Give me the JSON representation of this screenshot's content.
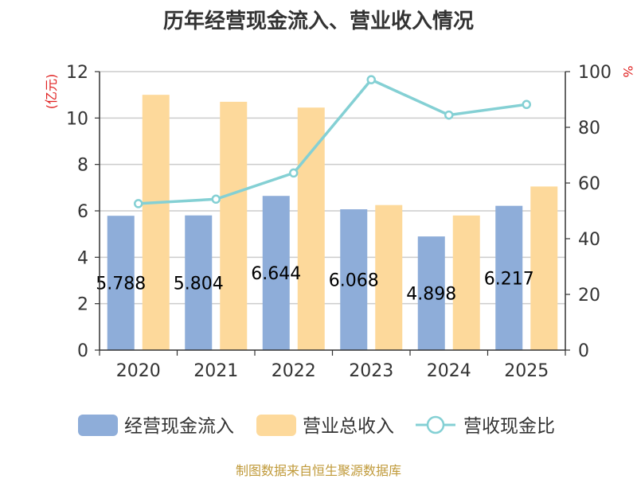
{
  "chart_data": {
    "type": "bar",
    "title": "历年经营现金流入、营业收入情况",
    "categories": [
      "2020",
      "2021",
      "2022",
      "2023",
      "2024",
      "2025"
    ],
    "y_left": {
      "unit_label": "(亿元)",
      "min": 0,
      "max": 12,
      "ticks": [
        "0",
        "2",
        "4",
        "6",
        "8",
        "10",
        "12"
      ]
    },
    "y_right": {
      "unit_label": "%",
      "min": 0,
      "max": 100,
      "ticks": [
        "0",
        "20",
        "40",
        "60",
        "80",
        "100"
      ]
    },
    "grid": true,
    "legend_position": "bottom",
    "series": [
      {
        "name": "经营现金流入",
        "type": "bar",
        "axis": "left",
        "color": "#8eadd9",
        "values": [
          5.788,
          5.804,
          6.644,
          6.068,
          4.898,
          6.217
        ],
        "labels": [
          "5.788",
          "5.804",
          "6.644",
          "6.068",
          "4.898",
          "6.217"
        ]
      },
      {
        "name": "营业总收入",
        "type": "bar",
        "axis": "left",
        "color": "#fdd99b",
        "values": [
          11.0,
          10.7,
          10.45,
          6.25,
          5.8,
          7.05
        ]
      },
      {
        "name": "营收现金比",
        "type": "line",
        "axis": "right",
        "color": "#84d0d4",
        "values": [
          52.6,
          54.2,
          63.6,
          97.1,
          84.4,
          88.2
        ]
      }
    ]
  },
  "source": "制图数据来自恒生聚源数据库"
}
